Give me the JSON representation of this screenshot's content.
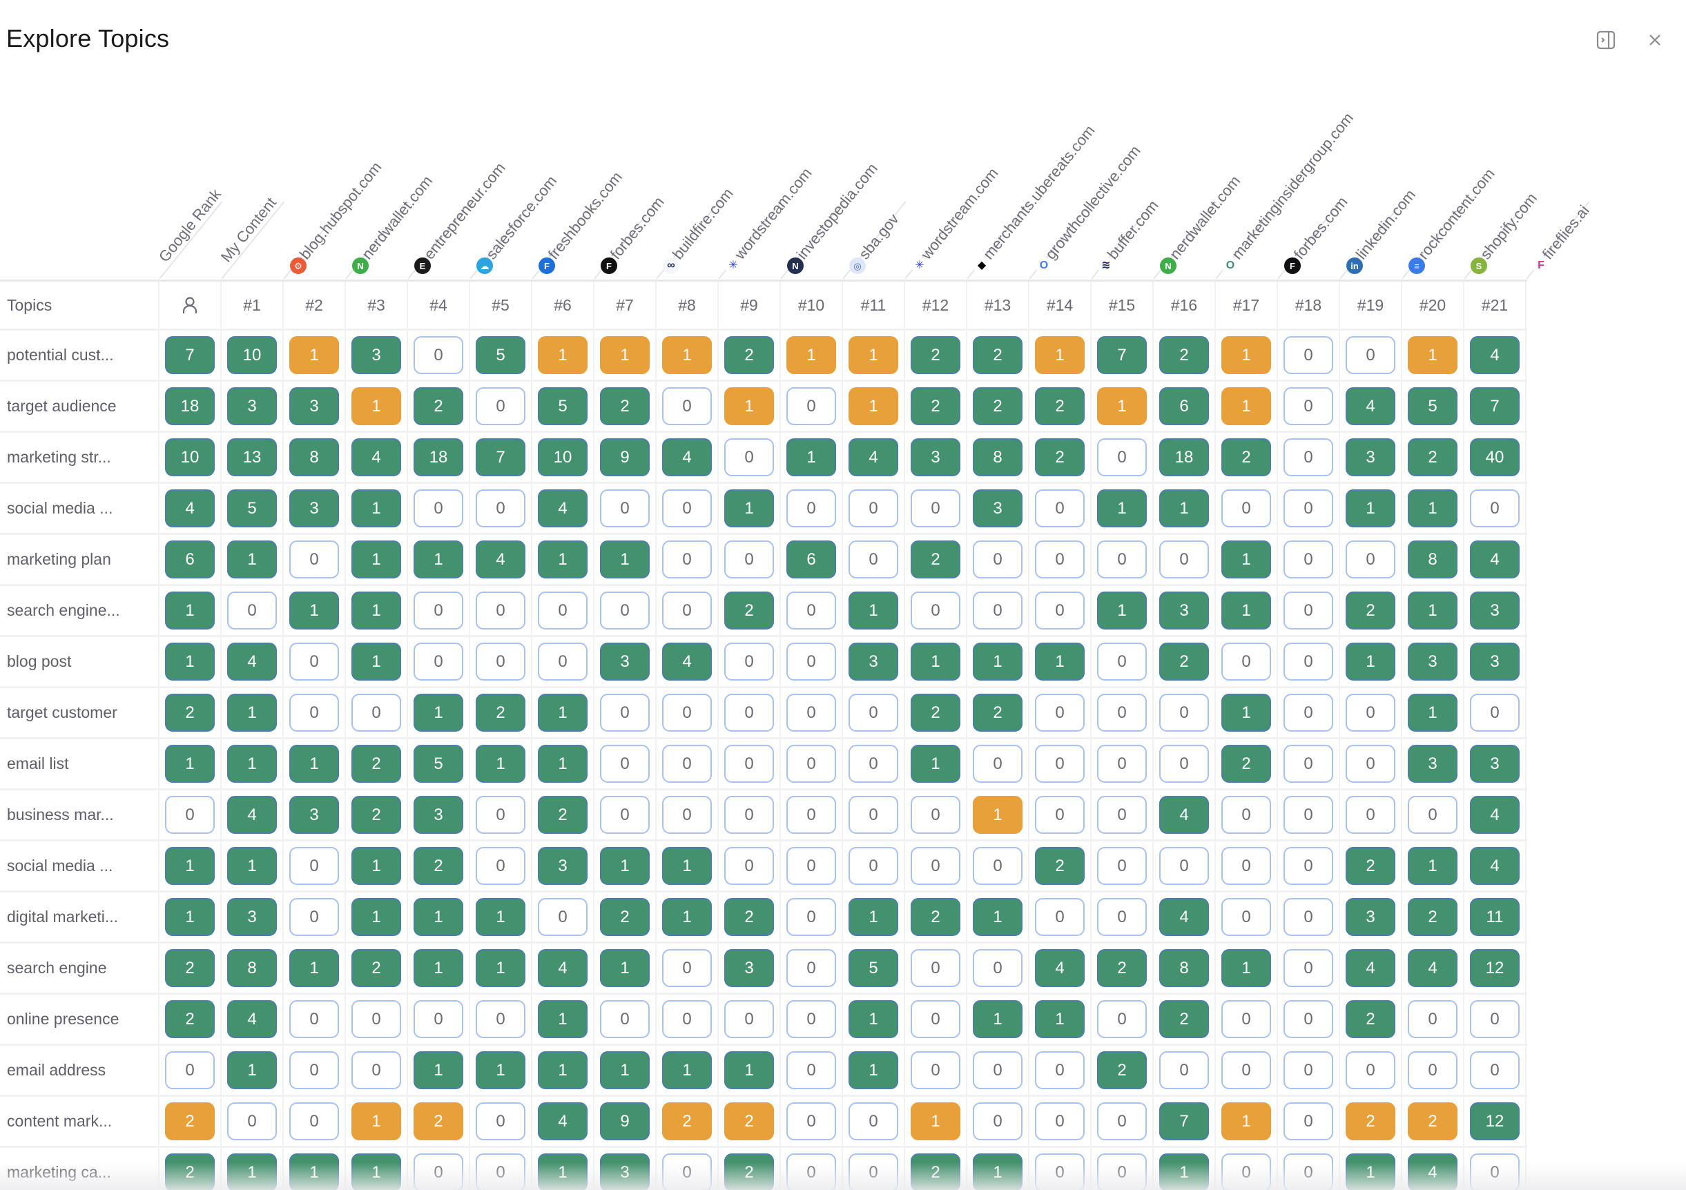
{
  "header": {
    "title": "Explore Topics",
    "actions": [
      {
        "name": "toggle-panel",
        "icon": "sidebar-panel-icon"
      },
      {
        "name": "close",
        "icon": "close-icon"
      }
    ]
  },
  "table": {
    "topics_header": "Topics",
    "columns": [
      {
        "label": "Google Rank",
        "rank": "",
        "icon": "user-icon",
        "favicon": null,
        "favicon_color": null
      },
      {
        "label": "My Content",
        "rank": "#1",
        "favicon": null,
        "favicon_color": null
      },
      {
        "label": "blog.hubspot.com",
        "rank": "#2",
        "favicon": "hubspot-favicon",
        "favicon_color": "#ec5b38",
        "favicon_glyph": "⚙"
      },
      {
        "label": "nerdwallet.com",
        "rank": "#3",
        "favicon": "nerdwallet-favicon",
        "favicon_color": "#3fae49",
        "favicon_glyph": "N"
      },
      {
        "label": "entrepreneur.com",
        "rank": "#4",
        "favicon": "entrepreneur-favicon",
        "favicon_color": "#1b1b1b",
        "favicon_glyph": "E"
      },
      {
        "label": "salesforce.com",
        "rank": "#5",
        "favicon": "salesforce-favicon",
        "favicon_color": "#2ea3e2",
        "favicon_glyph": "☁"
      },
      {
        "label": "freshbooks.com",
        "rank": "#6",
        "favicon": "freshbooks-favicon",
        "favicon_color": "#1f6fd8",
        "favicon_glyph": "F"
      },
      {
        "label": "forbes.com",
        "rank": "#7",
        "favicon": "forbes-favicon",
        "favicon_color": "#111111",
        "favicon_glyph": "F"
      },
      {
        "label": "buildfire.com",
        "rank": "#8",
        "favicon": "buildfire-favicon",
        "favicon_color": "#f4f6fb",
        "favicon_glyph": "∞",
        "favicon_text": "#1d2e6b"
      },
      {
        "label": "wordstream.com",
        "rank": "#9",
        "favicon": "wordstream-favicon",
        "favicon_color": "#ffffff",
        "favicon_glyph": "✳",
        "favicon_text": "#2f3fe0"
      },
      {
        "label": "investopedia.com",
        "rank": "#10",
        "favicon": "investopedia-favicon",
        "favicon_color": "#23304f",
        "favicon_glyph": "N"
      },
      {
        "label": "sba.gov",
        "rank": "#11",
        "favicon": "sba-favicon",
        "favicon_color": "#dfe6f7",
        "favicon_glyph": "◎",
        "favicon_text": "#4b66b8"
      },
      {
        "label": "wordstream.com",
        "rank": "#12",
        "favicon": "wordstream-favicon",
        "favicon_color": "#ffffff",
        "favicon_glyph": "✳",
        "favicon_text": "#2f3fe0"
      },
      {
        "label": "merchants.ubereats.com",
        "rank": "#13",
        "favicon": "ubereats-favicon",
        "favicon_color": "#ffffff",
        "favicon_glyph": "◆",
        "favicon_text": "#000000"
      },
      {
        "label": "growthcollective.com",
        "rank": "#14",
        "favicon": "growthcollective-favicon",
        "favicon_color": "#ffffff",
        "favicon_glyph": "O",
        "favicon_text": "#3c7be8"
      },
      {
        "label": "buffer.com",
        "rank": "#15",
        "favicon": "buffer-favicon",
        "favicon_color": "#ffffff",
        "favicon_glyph": "≋",
        "favicon_text": "#1e2a5a"
      },
      {
        "label": "nerdwallet.com",
        "rank": "#16",
        "favicon": "nerdwallet-favicon",
        "favicon_color": "#3fae49",
        "favicon_glyph": "N"
      },
      {
        "label": "marketinginsidergroup.com",
        "rank": "#17",
        "favicon": "marketinginsidergroup-favicon",
        "favicon_color": "#ffffff",
        "favicon_glyph": "O",
        "favicon_text": "#3d8f6e"
      },
      {
        "label": "forbes.com",
        "rank": "#18",
        "favicon": "forbes-favicon",
        "favicon_color": "#111111",
        "favicon_glyph": "F"
      },
      {
        "label": "linkedin.com",
        "rank": "#19",
        "favicon": "linkedin-favicon",
        "favicon_color": "#2d6eb5",
        "favicon_glyph": "in"
      },
      {
        "label": "rockcontent.com",
        "rank": "#20",
        "favicon": "rockcontent-favicon",
        "favicon_color": "#3a7be8",
        "favicon_glyph": "≡"
      },
      {
        "label": "shopify.com",
        "rank": "#21",
        "favicon": "shopify-favicon",
        "favicon_color": "#86b43f",
        "favicon_glyph": "S"
      },
      {
        "label": "fireflies.ai",
        "rank": "",
        "favicon": "fireflies-favicon",
        "favicon_color": "#ffffff",
        "favicon_glyph": "F",
        "favicon_text": "#c93a8f"
      }
    ],
    "rows": [
      {
        "topic": "potential cust...",
        "values": [
          7,
          10,
          1,
          3,
          0,
          5,
          1,
          1,
          1,
          2,
          1,
          1,
          2,
          2,
          1,
          7,
          2,
          1,
          0,
          0,
          1,
          4
        ],
        "orange": [
          2,
          6,
          7,
          8,
          10,
          11,
          14,
          17,
          20
        ]
      },
      {
        "topic": "target audience",
        "values": [
          18,
          3,
          3,
          1,
          2,
          0,
          5,
          2,
          0,
          1,
          0,
          1,
          2,
          2,
          2,
          1,
          6,
          1,
          0,
          4,
          5,
          7
        ],
        "orange": [
          3,
          9,
          11,
          15,
          17
        ]
      },
      {
        "topic": "marketing str...",
        "values": [
          10,
          13,
          8,
          4,
          18,
          7,
          10,
          9,
          4,
          0,
          1,
          4,
          3,
          8,
          2,
          0,
          18,
          2,
          0,
          3,
          2,
          40
        ],
        "orange": []
      },
      {
        "topic": "social media ...",
        "values": [
          4,
          5,
          3,
          1,
          0,
          0,
          4,
          0,
          0,
          1,
          0,
          0,
          0,
          3,
          0,
          1,
          1,
          0,
          0,
          1,
          1,
          0
        ],
        "orange": []
      },
      {
        "topic": "marketing plan",
        "values": [
          6,
          1,
          0,
          1,
          1,
          4,
          1,
          1,
          0,
          0,
          6,
          0,
          2,
          0,
          0,
          0,
          0,
          1,
          0,
          0,
          8,
          4
        ],
        "orange": []
      },
      {
        "topic": "search engine...",
        "values": [
          1,
          0,
          1,
          1,
          0,
          0,
          0,
          0,
          0,
          2,
          0,
          1,
          0,
          0,
          0,
          1,
          3,
          1,
          0,
          2,
          1,
          3
        ],
        "orange": []
      },
      {
        "topic": "blog post",
        "values": [
          1,
          4,
          0,
          1,
          0,
          0,
          0,
          3,
          4,
          0,
          0,
          3,
          1,
          1,
          1,
          0,
          2,
          0,
          0,
          1,
          3,
          3
        ],
        "orange": []
      },
      {
        "topic": "target customer",
        "values": [
          2,
          1,
          0,
          0,
          1,
          2,
          1,
          0,
          0,
          0,
          0,
          0,
          2,
          2,
          0,
          0,
          0,
          1,
          0,
          0,
          1,
          0
        ],
        "orange": []
      },
      {
        "topic": "email list",
        "values": [
          1,
          1,
          1,
          2,
          5,
          1,
          1,
          0,
          0,
          0,
          0,
          0,
          1,
          0,
          0,
          0,
          0,
          2,
          0,
          0,
          3,
          3
        ],
        "orange": []
      },
      {
        "topic": "business mar...",
        "values": [
          0,
          4,
          3,
          2,
          3,
          0,
          2,
          0,
          0,
          0,
          0,
          0,
          0,
          1,
          0,
          0,
          4,
          0,
          0,
          0,
          0,
          4
        ],
        "orange": [
          13
        ]
      },
      {
        "topic": "social media ...",
        "values": [
          1,
          1,
          0,
          1,
          2,
          0,
          3,
          1,
          1,
          0,
          0,
          0,
          0,
          0,
          2,
          0,
          0,
          0,
          0,
          2,
          1,
          4
        ],
        "orange": []
      },
      {
        "topic": "digital marketi...",
        "values": [
          1,
          3,
          0,
          1,
          1,
          1,
          0,
          2,
          1,
          2,
          0,
          1,
          2,
          1,
          0,
          0,
          4,
          0,
          0,
          3,
          2,
          11
        ],
        "orange": []
      },
      {
        "topic": "search engine",
        "values": [
          2,
          8,
          1,
          2,
          1,
          1,
          4,
          1,
          0,
          3,
          0,
          5,
          0,
          0,
          4,
          2,
          8,
          1,
          0,
          4,
          4,
          12
        ],
        "orange": []
      },
      {
        "topic": "online presence",
        "values": [
          2,
          4,
          0,
          0,
          0,
          0,
          1,
          0,
          0,
          0,
          0,
          1,
          0,
          1,
          1,
          0,
          2,
          0,
          0,
          2,
          0,
          0
        ],
        "orange": []
      },
      {
        "topic": "email address",
        "values": [
          0,
          1,
          0,
          0,
          1,
          1,
          1,
          1,
          1,
          1,
          0,
          1,
          0,
          0,
          0,
          2,
          0,
          0,
          0,
          0,
          0,
          0
        ],
        "orange": []
      },
      {
        "topic": "content mark...",
        "values": [
          2,
          0,
          0,
          1,
          2,
          0,
          4,
          9,
          2,
          2,
          0,
          0,
          1,
          0,
          0,
          0,
          7,
          1,
          0,
          2,
          2,
          12
        ],
        "orange": [
          0,
          3,
          4,
          8,
          9,
          12,
          17,
          19,
          20
        ]
      },
      {
        "topic": "marketing ca...",
        "values": [
          2,
          1,
          1,
          1,
          0,
          0,
          1,
          3,
          0,
          2,
          0,
          0,
          2,
          1,
          0,
          0,
          1,
          0,
          0,
          1,
          4,
          0
        ],
        "orange": []
      }
    ]
  },
  "colors": {
    "green": "#44926d",
    "orange": "#e8a03b",
    "zero_border": "#a8c1f2"
  }
}
